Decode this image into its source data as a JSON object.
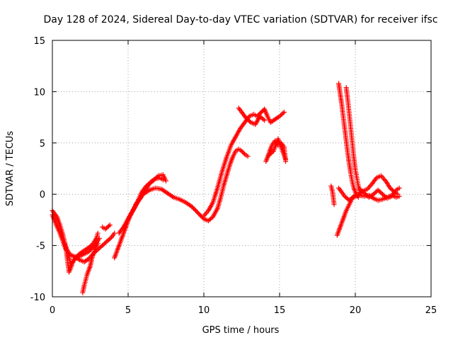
{
  "chart_data": {
    "type": "scatter",
    "title": "Day 128 of 2024, Sidereal Day-to-day VTEC variation (SDTVAR) for receiver ifsc",
    "xlabel": "GPS time / hours",
    "ylabel": "SDTVAR / TECUs",
    "xlim": [
      0,
      25
    ],
    "ylim": [
      -10,
      15
    ],
    "xticks": [
      0,
      5,
      10,
      15,
      20,
      25
    ],
    "yticks": [
      -10,
      -5,
      0,
      5,
      10,
      15
    ],
    "xtick_labels": [
      "0",
      "5",
      "10",
      "15",
      "20",
      "25"
    ],
    "ytick_labels": [
      "-10",
      "-5",
      "0",
      "5",
      "10",
      "15"
    ],
    "grid": true,
    "marker": "+",
    "series": [
      {
        "name": "SDTVAR",
        "color": "#ff0000",
        "segments": [
          [
            [
              0.0,
              -1.6
            ],
            [
              0.3,
              -2.2
            ],
            [
              0.5,
              -3.0
            ],
            [
              0.7,
              -4.0
            ],
            [
              0.9,
              -5.2
            ],
            [
              1.0,
              -6.5
            ],
            [
              1.1,
              -7.6
            ],
            [
              1.3,
              -6.8
            ],
            [
              1.5,
              -6.2
            ],
            [
              1.8,
              -5.8
            ],
            [
              2.1,
              -5.5
            ],
            [
              2.4,
              -5.2
            ],
            [
              2.7,
              -4.8
            ],
            [
              2.9,
              -4.3
            ],
            [
              3.0,
              -3.8
            ]
          ],
          [
            [
              0.0,
              -2.0
            ],
            [
              0.2,
              -2.8
            ],
            [
              0.5,
              -3.8
            ],
            [
              0.7,
              -4.6
            ],
            [
              0.9,
              -5.4
            ],
            [
              1.2,
              -5.9
            ],
            [
              1.5,
              -6.1
            ],
            [
              1.8,
              -6.4
            ],
            [
              2.1,
              -6.6
            ],
            [
              2.4,
              -6.3
            ],
            [
              2.7,
              -5.8
            ],
            [
              3.0,
              -5.4
            ],
            [
              3.3,
              -5.0
            ],
            [
              3.6,
              -4.6
            ],
            [
              3.9,
              -4.2
            ],
            [
              4.1,
              -3.8
            ]
          ],
          [
            [
              0.8,
              -4.8
            ],
            [
              1.0,
              -5.5
            ],
            [
              1.2,
              -6.8
            ],
            [
              1.6,
              -6.2
            ],
            [
              2.0,
              -5.9
            ],
            [
              2.4,
              -5.6
            ],
            [
              2.8,
              -5.0
            ],
            [
              3.1,
              -4.3
            ]
          ],
          [
            [
              2.0,
              -9.6
            ],
            [
              2.1,
              -8.9
            ],
            [
              2.3,
              -7.8
            ],
            [
              2.5,
              -7.0
            ],
            [
              2.6,
              -6.3
            ],
            [
              2.8,
              -5.4
            ],
            [
              3.0,
              -4.8
            ]
          ],
          [
            [
              3.3,
              -3.2
            ],
            [
              3.5,
              -3.4
            ],
            [
              3.8,
              -3.0
            ]
          ],
          [
            [
              4.1,
              -6.2
            ],
            [
              4.3,
              -5.4
            ],
            [
              4.5,
              -4.6
            ],
            [
              4.7,
              -3.8
            ],
            [
              4.9,
              -3.0
            ],
            [
              5.1,
              -2.2
            ],
            [
              5.4,
              -1.4
            ],
            [
              5.7,
              -0.6
            ],
            [
              6.0,
              0.0
            ],
            [
              6.4,
              0.4
            ],
            [
              6.8,
              0.6
            ],
            [
              7.2,
              0.5
            ],
            [
              7.6,
              0.1
            ],
            [
              8.0,
              -0.3
            ],
            [
              8.4,
              -0.5
            ],
            [
              8.8,
              -0.8
            ],
            [
              9.2,
              -1.2
            ],
            [
              9.6,
              -1.8
            ],
            [
              10.0,
              -2.4
            ],
            [
              10.3,
              -2.6
            ],
            [
              10.6,
              -2.2
            ],
            [
              10.9,
              -1.4
            ],
            [
              11.1,
              -0.4
            ],
            [
              11.3,
              0.8
            ],
            [
              11.5,
              1.8
            ],
            [
              11.7,
              2.8
            ],
            [
              11.9,
              3.6
            ],
            [
              12.1,
              4.2
            ],
            [
              12.3,
              4.4
            ],
            [
              12.5,
              4.2
            ],
            [
              12.7,
              3.9
            ],
            [
              12.9,
              3.7
            ]
          ],
          [
            [
              4.4,
              -3.8
            ],
            [
              4.7,
              -3.2
            ],
            [
              5.0,
              -2.4
            ],
            [
              5.3,
              -1.6
            ],
            [
              5.6,
              -0.8
            ],
            [
              5.9,
              0.2
            ],
            [
              6.2,
              0.8
            ],
            [
              6.5,
              1.2
            ],
            [
              6.8,
              1.5
            ],
            [
              7.1,
              1.6
            ],
            [
              7.3,
              1.4
            ]
          ],
          [
            [
              5.5,
              -1.0
            ],
            [
              5.8,
              -0.4
            ],
            [
              6.1,
              0.3
            ],
            [
              6.4,
              1.0
            ],
            [
              6.7,
              1.4
            ],
            [
              7.0,
              1.8
            ],
            [
              7.3,
              1.9
            ],
            [
              7.5,
              1.3
            ]
          ],
          [
            [
              10.0,
              -2.1
            ],
            [
              10.3,
              -1.6
            ],
            [
              10.6,
              -0.8
            ],
            [
              10.9,
              0.6
            ],
            [
              11.2,
              2.2
            ],
            [
              11.5,
              3.6
            ],
            [
              11.8,
              4.8
            ],
            [
              12.1,
              5.6
            ],
            [
              12.4,
              6.4
            ],
            [
              12.7,
              7.0
            ],
            [
              13.0,
              7.6
            ],
            [
              13.3,
              7.8
            ],
            [
              13.5,
              7.6
            ],
            [
              13.8,
              8.0
            ],
            [
              14.0,
              8.3
            ],
            [
              14.2,
              7.6
            ],
            [
              14.4,
              7.0
            ],
            [
              14.7,
              7.3
            ],
            [
              15.0,
              7.6
            ],
            [
              15.3,
              8.0
            ]
          ],
          [
            [
              12.3,
              8.4
            ],
            [
              12.5,
              8.0
            ],
            [
              12.8,
              7.4
            ],
            [
              13.1,
              7.0
            ],
            [
              13.4,
              6.8
            ],
            [
              13.7,
              7.6
            ],
            [
              14.0,
              7.2
            ]
          ],
          [
            [
              14.1,
              3.2
            ],
            [
              14.3,
              4.0
            ],
            [
              14.5,
              4.8
            ],
            [
              14.7,
              5.2
            ],
            [
              14.9,
              4.8
            ],
            [
              15.1,
              5.0
            ],
            [
              15.3,
              4.6
            ],
            [
              15.4,
              3.2
            ]
          ],
          [
            [
              14.3,
              3.8
            ],
            [
              14.6,
              4.2
            ],
            [
              14.9,
              5.4
            ],
            [
              15.2,
              4.2
            ],
            [
              15.4,
              3.4
            ]
          ],
          [
            [
              18.4,
              0.8
            ],
            [
              18.5,
              0.2
            ],
            [
              18.6,
              -1.0
            ]
          ],
          [
            [
              18.9,
              10.8
            ],
            [
              19.0,
              9.8
            ],
            [
              19.1,
              8.8
            ],
            [
              19.2,
              7.6
            ],
            [
              19.3,
              6.4
            ],
            [
              19.4,
              5.2
            ],
            [
              19.5,
              4.0
            ],
            [
              19.6,
              3.0
            ],
            [
              19.7,
              2.0
            ],
            [
              19.8,
              1.2
            ],
            [
              19.9,
              0.6
            ],
            [
              20.0,
              0.2
            ],
            [
              20.2,
              -0.3
            ]
          ],
          [
            [
              19.4,
              10.4
            ],
            [
              19.5,
              9.2
            ],
            [
              19.6,
              7.8
            ],
            [
              19.7,
              6.4
            ],
            [
              19.8,
              5.0
            ],
            [
              19.9,
              3.6
            ],
            [
              20.0,
              2.4
            ],
            [
              20.1,
              1.6
            ],
            [
              20.2,
              0.8
            ],
            [
              20.3,
              0.2
            ]
          ],
          [
            [
              18.8,
              -4.0
            ],
            [
              19.0,
              -3.2
            ],
            [
              19.2,
              -2.4
            ],
            [
              19.4,
              -1.6
            ],
            [
              19.6,
              -1.0
            ],
            [
              19.8,
              -0.4
            ],
            [
              20.0,
              -0.2
            ],
            [
              20.3,
              -0.1
            ],
            [
              20.6,
              -0.2
            ],
            [
              20.9,
              -0.1
            ],
            [
              21.2,
              -0.4
            ],
            [
              21.5,
              -0.6
            ],
            [
              21.8,
              -0.5
            ],
            [
              22.1,
              -0.3
            ],
            [
              22.4,
              -0.1
            ],
            [
              22.7,
              -0.3
            ],
            [
              22.9,
              -0.2
            ]
          ],
          [
            [
              18.9,
              0.6
            ],
            [
              19.1,
              0.2
            ],
            [
              19.3,
              -0.2
            ],
            [
              19.6,
              -0.6
            ],
            [
              19.9,
              -0.2
            ],
            [
              20.2,
              0.0
            ],
            [
              20.5,
              0.3
            ],
            [
              20.8,
              0.5
            ],
            [
              21.1,
              1.0
            ],
            [
              21.4,
              1.6
            ],
            [
              21.7,
              1.8
            ],
            [
              22.0,
              1.3
            ],
            [
              22.3,
              0.6
            ],
            [
              22.6,
              0.2
            ],
            [
              22.8,
              0.0
            ]
          ],
          [
            [
              20.3,
              0.5
            ],
            [
              20.6,
              0.1
            ],
            [
              20.9,
              -0.3
            ],
            [
              21.2,
              0.0
            ],
            [
              21.5,
              0.4
            ],
            [
              21.8,
              0.0
            ],
            [
              22.1,
              -0.4
            ],
            [
              22.4,
              -0.2
            ],
            [
              22.7,
              0.4
            ],
            [
              22.9,
              0.6
            ]
          ]
        ]
      }
    ]
  }
}
